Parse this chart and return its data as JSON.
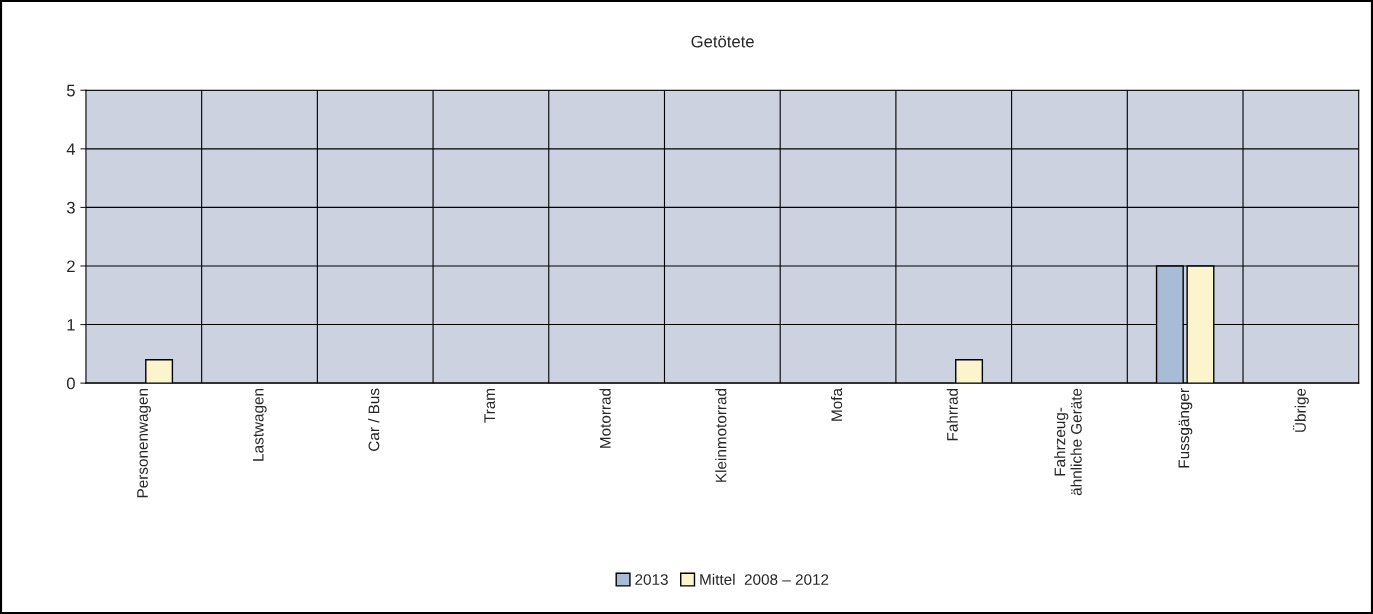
{
  "chart_data": {
    "type": "bar",
    "title": "Getötete",
    "categories": [
      "Personenwagen",
      "Lastwagen",
      "Car / Bus",
      "Tram",
      "Motorrad",
      "Kleinmotorrad",
      "Mofa",
      "Fahrrad",
      "Fahrzeug-\nähnliche Geräte",
      "Fussgänger",
      "Übrige"
    ],
    "series": [
      {
        "name": "2013",
        "color": "#a9bcd6",
        "values": [
          0,
          0,
          0,
          0,
          0,
          0,
          0,
          0,
          0,
          2,
          0
        ]
      },
      {
        "name": "Mittel  2008 – 2012",
        "color": "#fbf4cc",
        "values": [
          0.4,
          0,
          0,
          0,
          0,
          0,
          0,
          0.4,
          0,
          2,
          0
        ]
      }
    ],
    "ylim": [
      0,
      5
    ],
    "yticks": [
      0,
      1,
      2,
      3,
      4,
      5
    ],
    "grid": true,
    "legend": "bottom"
  }
}
